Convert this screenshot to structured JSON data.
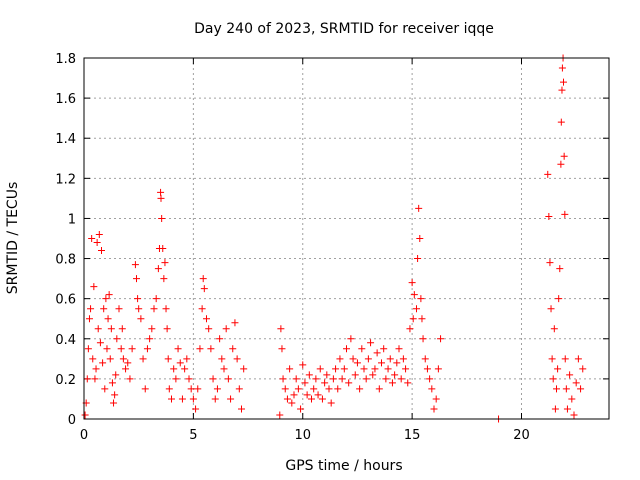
{
  "chart_data": {
    "type": "scatter",
    "title": "Day 240 of 2023, SRMTID for receiver iqqe",
    "xlabel": "GPS time / hours",
    "ylabel": "SRMTID / TECUs",
    "xlim": [
      0,
      24
    ],
    "ylim": [
      0,
      1.8
    ],
    "xticks": [
      0,
      5,
      10,
      15,
      20
    ],
    "xtick_labels": [
      "0",
      "5",
      "10",
      "15",
      "20"
    ],
    "yticks": [
      0,
      0.2,
      0.4,
      0.6,
      0.8,
      1,
      1.2,
      1.4,
      1.6,
      1.8
    ],
    "ytick_labels": [
      "0",
      "0.2",
      "0.4",
      "0.6",
      "0.8",
      "1",
      "1.2",
      "1.4",
      "1.6",
      "1.8"
    ],
    "grid": true,
    "marker": "+",
    "color": "#ff0000",
    "series": [
      {
        "name": "SRMTID",
        "points": [
          [
            0.05,
            0.02
          ],
          [
            0.1,
            0.08
          ],
          [
            0.15,
            0.2
          ],
          [
            0.2,
            0.35
          ],
          [
            0.25,
            0.5
          ],
          [
            0.3,
            0.55
          ],
          [
            0.35,
            0.9
          ],
          [
            0.4,
            0.3
          ],
          [
            0.45,
            0.66
          ],
          [
            0.5,
            0.2
          ],
          [
            0.55,
            0.25
          ],
          [
            0.6,
            0.88
          ],
          [
            0.65,
            0.45
          ],
          [
            0.7,
            0.92
          ],
          [
            0.75,
            0.38
          ],
          [
            0.8,
            0.84
          ],
          [
            0.85,
            0.28
          ],
          [
            0.9,
            0.55
          ],
          [
            0.95,
            0.15
          ],
          [
            1.0,
            0.6
          ],
          [
            1.05,
            0.35
          ],
          [
            1.1,
            0.5
          ],
          [
            1.15,
            0.62
          ],
          [
            1.2,
            0.3
          ],
          [
            1.25,
            0.45
          ],
          [
            1.3,
            0.18
          ],
          [
            1.35,
            0.08
          ],
          [
            1.4,
            0.12
          ],
          [
            1.45,
            0.22
          ],
          [
            1.5,
            0.4
          ],
          [
            1.6,
            0.55
          ],
          [
            1.7,
            0.35
          ],
          [
            1.75,
            0.45
          ],
          [
            1.8,
            0.3
          ],
          [
            1.9,
            0.25
          ],
          [
            2.0,
            0.28
          ],
          [
            2.1,
            0.2
          ],
          [
            2.2,
            0.35
          ],
          [
            2.35,
            0.77
          ],
          [
            2.4,
            0.7
          ],
          [
            2.45,
            0.6
          ],
          [
            2.5,
            0.55
          ],
          [
            2.6,
            0.5
          ],
          [
            2.7,
            0.3
          ],
          [
            2.8,
            0.15
          ],
          [
            2.9,
            0.35
          ],
          [
            3.0,
            0.4
          ],
          [
            3.1,
            0.45
          ],
          [
            3.2,
            0.55
          ],
          [
            3.3,
            0.6
          ],
          [
            3.4,
            0.75
          ],
          [
            3.45,
            0.85
          ],
          [
            3.5,
            1.13
          ],
          [
            3.52,
            1.1
          ],
          [
            3.55,
            1.0
          ],
          [
            3.6,
            0.85
          ],
          [
            3.65,
            0.7
          ],
          [
            3.7,
            0.78
          ],
          [
            3.75,
            0.55
          ],
          [
            3.8,
            0.45
          ],
          [
            3.85,
            0.3
          ],
          [
            3.9,
            0.15
          ],
          [
            4.0,
            0.1
          ],
          [
            4.1,
            0.25
          ],
          [
            4.2,
            0.2
          ],
          [
            4.3,
            0.35
          ],
          [
            4.4,
            0.28
          ],
          [
            4.5,
            0.1
          ],
          [
            4.6,
            0.25
          ],
          [
            4.7,
            0.3
          ],
          [
            4.8,
            0.2
          ],
          [
            4.9,
            0.15
          ],
          [
            5.0,
            0.1
          ],
          [
            5.1,
            0.05
          ],
          [
            5.2,
            0.15
          ],
          [
            5.3,
            0.35
          ],
          [
            5.4,
            0.55
          ],
          [
            5.45,
            0.7
          ],
          [
            5.5,
            0.65
          ],
          [
            5.6,
            0.5
          ],
          [
            5.7,
            0.45
          ],
          [
            5.8,
            0.35
          ],
          [
            5.9,
            0.2
          ],
          [
            6.0,
            0.1
          ],
          [
            6.1,
            0.15
          ],
          [
            6.2,
            0.4
          ],
          [
            6.3,
            0.3
          ],
          [
            6.4,
            0.25
          ],
          [
            6.5,
            0.45
          ],
          [
            6.6,
            0.2
          ],
          [
            6.7,
            0.1
          ],
          [
            6.8,
            0.35
          ],
          [
            6.9,
            0.48
          ],
          [
            7.0,
            0.3
          ],
          [
            7.1,
            0.15
          ],
          [
            7.2,
            0.05
          ],
          [
            7.3,
            0.25
          ],
          [
            8.95,
            0.02
          ],
          [
            9.0,
            0.45
          ],
          [
            9.05,
            0.35
          ],
          [
            9.1,
            0.2
          ],
          [
            9.2,
            0.15
          ],
          [
            9.3,
            0.1
          ],
          [
            9.4,
            0.25
          ],
          [
            9.5,
            0.08
          ],
          [
            9.6,
            0.12
          ],
          [
            9.7,
            0.2
          ],
          [
            9.8,
            0.15
          ],
          [
            9.9,
            0.05
          ],
          [
            10.0,
            0.27
          ],
          [
            10.1,
            0.18
          ],
          [
            10.2,
            0.12
          ],
          [
            10.3,
            0.22
          ],
          [
            10.4,
            0.1
          ],
          [
            10.5,
            0.15
          ],
          [
            10.6,
            0.2
          ],
          [
            10.7,
            0.12
          ],
          [
            10.8,
            0.25
          ],
          [
            10.9,
            0.1
          ],
          [
            11.0,
            0.18
          ],
          [
            11.1,
            0.22
          ],
          [
            11.2,
            0.15
          ],
          [
            11.3,
            0.08
          ],
          [
            11.4,
            0.2
          ],
          [
            11.5,
            0.25
          ],
          [
            11.6,
            0.15
          ],
          [
            11.7,
            0.3
          ],
          [
            11.8,
            0.2
          ],
          [
            11.9,
            0.25
          ],
          [
            12.0,
            0.35
          ],
          [
            12.1,
            0.18
          ],
          [
            12.2,
            0.4
          ],
          [
            12.3,
            0.3
          ],
          [
            12.4,
            0.22
          ],
          [
            12.5,
            0.28
          ],
          [
            12.6,
            0.15
          ],
          [
            12.7,
            0.35
          ],
          [
            12.8,
            0.25
          ],
          [
            12.9,
            0.2
          ],
          [
            13.0,
            0.3
          ],
          [
            13.1,
            0.38
          ],
          [
            13.2,
            0.22
          ],
          [
            13.3,
            0.25
          ],
          [
            13.4,
            0.33
          ],
          [
            13.5,
            0.15
          ],
          [
            13.6,
            0.28
          ],
          [
            13.7,
            0.35
          ],
          [
            13.8,
            0.2
          ],
          [
            13.9,
            0.25
          ],
          [
            14.0,
            0.3
          ],
          [
            14.1,
            0.18
          ],
          [
            14.2,
            0.22
          ],
          [
            14.3,
            0.28
          ],
          [
            14.4,
            0.35
          ],
          [
            14.5,
            0.2
          ],
          [
            14.6,
            0.3
          ],
          [
            14.7,
            0.25
          ],
          [
            14.8,
            0.18
          ],
          [
            14.9,
            0.45
          ],
          [
            15.0,
            0.68
          ],
          [
            15.05,
            0.5
          ],
          [
            15.1,
            0.62
          ],
          [
            15.2,
            0.55
          ],
          [
            15.25,
            0.8
          ],
          [
            15.3,
            1.05
          ],
          [
            15.35,
            0.9
          ],
          [
            15.4,
            0.6
          ],
          [
            15.45,
            0.5
          ],
          [
            15.5,
            0.4
          ],
          [
            15.6,
            0.3
          ],
          [
            15.7,
            0.25
          ],
          [
            15.8,
            0.2
          ],
          [
            15.9,
            0.15
          ],
          [
            16.0,
            0.05
          ],
          [
            16.1,
            0.1
          ],
          [
            16.2,
            0.25
          ],
          [
            16.3,
            0.4
          ],
          [
            18.95,
            0.0
          ],
          [
            21.2,
            1.22
          ],
          [
            21.25,
            1.01
          ],
          [
            21.3,
            0.78
          ],
          [
            21.35,
            0.55
          ],
          [
            21.4,
            0.3
          ],
          [
            21.45,
            0.2
          ],
          [
            21.5,
            0.45
          ],
          [
            21.55,
            0.05
          ],
          [
            21.6,
            0.15
          ],
          [
            21.65,
            0.25
          ],
          [
            21.7,
            0.6
          ],
          [
            21.75,
            0.75
          ],
          [
            21.8,
            1.27
          ],
          [
            21.82,
            1.48
          ],
          [
            21.85,
            1.64
          ],
          [
            21.87,
            1.75
          ],
          [
            21.9,
            1.8
          ],
          [
            21.92,
            1.68
          ],
          [
            21.95,
            1.31
          ],
          [
            21.98,
            1.02
          ],
          [
            22.0,
            0.3
          ],
          [
            22.05,
            0.15
          ],
          [
            22.1,
            0.05
          ],
          [
            22.2,
            0.22
          ],
          [
            22.3,
            0.1
          ],
          [
            22.4,
            0.02
          ],
          [
            22.5,
            0.18
          ],
          [
            22.6,
            0.3
          ],
          [
            22.7,
            0.15
          ],
          [
            22.8,
            0.25
          ]
        ]
      }
    ]
  }
}
